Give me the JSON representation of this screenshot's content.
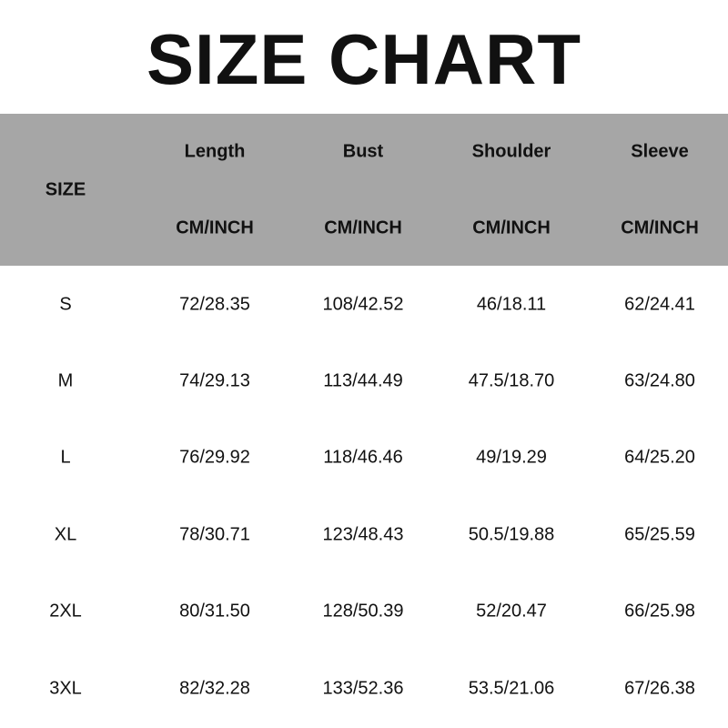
{
  "title": "SIZE CHART",
  "header": {
    "size_label": "SIZE",
    "columns": [
      {
        "name": "Length",
        "unit": "CM/INCH"
      },
      {
        "name": "Bust",
        "unit": "CM/INCH"
      },
      {
        "name": "Shoulder",
        "unit": "CM/INCH"
      },
      {
        "name": "Sleeve",
        "unit": "CM/INCH"
      }
    ]
  },
  "rows": [
    {
      "size": "S",
      "values": [
        "72/28.35",
        "108/42.52",
        "46/18.11",
        "62/24.41"
      ]
    },
    {
      "size": "M",
      "values": [
        "74/29.13",
        "113/44.49",
        "47.5/18.70",
        "63/24.80"
      ]
    },
    {
      "size": "L",
      "values": [
        "76/29.92",
        "118/46.46",
        "49/19.29",
        "64/25.20"
      ]
    },
    {
      "size": "XL",
      "values": [
        "78/30.71",
        "123/48.43",
        "50.5/19.88",
        "65/25.59"
      ]
    },
    {
      "size": "2XL",
      "values": [
        "80/31.50",
        "128/50.39",
        "52/20.47",
        "66/25.98"
      ]
    },
    {
      "size": "3XL",
      "values": [
        "82/32.28",
        "133/52.36",
        "53.5/21.06",
        "67/26.38"
      ]
    }
  ],
  "colors": {
    "header_bg": "#a6a6a6",
    "text": "#111111"
  }
}
